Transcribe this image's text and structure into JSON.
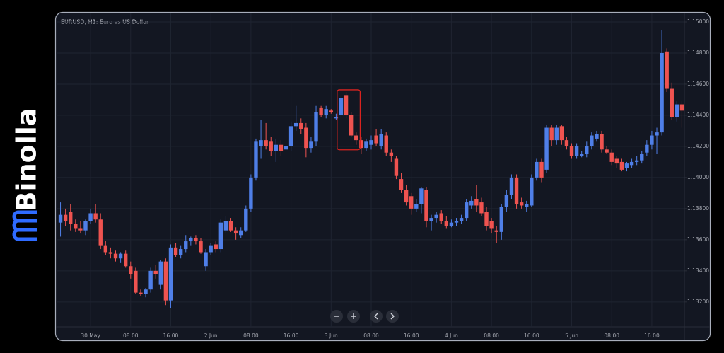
{
  "logo": "Binolla",
  "chart_data": {
    "type": "candlestick",
    "title": "EURUSD, H1: Euro vs US Dollar",
    "up_color": "#4f7fe8",
    "down_color": "#ef5350",
    "categories": [
      null,
      null,
      null,
      null,
      null,
      null,
      "30 May",
      null,
      null,
      null,
      null,
      null,
      null,
      null,
      "08:00",
      null,
      null,
      null,
      null,
      null,
      null,
      null,
      "16:00",
      null,
      null,
      null,
      null,
      null,
      null,
      null,
      "2 Jun",
      null,
      null,
      null,
      null,
      null,
      null,
      null,
      "08:00",
      null,
      null,
      null,
      null,
      null,
      null,
      null,
      "16:00",
      null,
      null,
      null,
      null,
      null,
      null,
      null,
      "3 Jun",
      null,
      null,
      null,
      null,
      null,
      null,
      null,
      "08:00",
      null,
      null,
      null,
      null,
      null,
      null,
      null,
      "16:00",
      null,
      null,
      null,
      null,
      null,
      null,
      null,
      "4 Jun",
      null,
      null,
      null,
      null,
      null,
      null,
      null,
      "08:00",
      null,
      null,
      null,
      null,
      null,
      null,
      null,
      "16:00",
      null,
      null,
      null,
      null,
      null,
      null,
      null,
      "5 Jun",
      null,
      null,
      null,
      null,
      null,
      null,
      null,
      "08:00",
      null,
      null,
      null,
      null,
      null,
      null,
      null,
      "16:00",
      null,
      null,
      null,
      null,
      null,
      null
    ],
    "open": [
      1.1371,
      1.1376,
      1.1378,
      1.137,
      1.1367,
      1.1366,
      1.1372,
      1.1377,
      1.1373,
      1.1356,
      1.1352,
      1.1351,
      1.1348,
      1.1351,
      1.1343,
      1.134,
      1.1326,
      1.1325,
      1.1328,
      1.134,
      1.1331,
      1.1346,
      1.1321,
      1.1355,
      1.135,
      1.1354,
      1.1359,
      1.1361,
      1.1359,
      1.1343,
      1.1352,
      1.1357,
      1.1354,
      1.1366,
      1.1372,
      1.1366,
      1.1363,
      1.1366,
      1.138,
      1.14,
      1.142,
      1.1424,
      1.1423,
      1.1417,
      1.1421,
      1.1418,
      1.142,
      1.1433,
      1.1435,
      1.1432,
      1.1419,
      1.1423,
      1.1445,
      1.144,
      1.1443,
      1.1438,
      1.144,
      1.1453,
      1.144,
      1.1427,
      1.1424,
      1.1419,
      1.1421,
      1.1427,
      1.142,
      1.1427,
      1.1416,
      1.1412,
      1.1399,
      1.1392,
      1.1388,
      1.138,
      1.1383,
      1.1392,
      1.1372,
      1.1374,
      1.1377,
      1.1372,
      1.1369,
      1.1371,
      1.1372,
      1.1374,
      1.1382,
      1.1386,
      1.1384,
      1.1378,
      1.1372,
      1.1366,
      1.1365,
      1.1381,
      1.1389,
      1.14,
      1.1384,
      1.1381,
      1.1382,
      1.14,
      1.141,
      1.1405,
      1.1432,
      1.1424,
      1.1433,
      1.1424,
      1.142,
      1.1414,
      1.1414,
      1.1415,
      1.142,
      1.1425,
      1.1428,
      1.1418,
      1.1416,
      1.1412,
      1.141,
      1.1406,
      1.1408,
      1.141,
      1.1411,
      1.1416,
      1.1421,
      1.1427,
      1.1429,
      1.1481,
      1.1457,
      1.1439,
      1.1447
    ],
    "high": [
      1.1384,
      1.138,
      1.1383,
      1.1373,
      1.1372,
      1.1373,
      1.138,
      1.1383,
      1.1377,
      1.1359,
      1.1355,
      1.1353,
      1.1352,
      1.1353,
      1.1346,
      1.1342,
      1.1328,
      1.1329,
      1.1342,
      1.1344,
      1.1347,
      1.1348,
      1.1357,
      1.1358,
      1.1356,
      1.1363,
      1.1362,
      1.1363,
      1.1361,
      1.1354,
      1.1358,
      1.1359,
      1.1373,
      1.1375,
      1.1374,
      1.1368,
      1.1368,
      1.1382,
      1.1402,
      1.1425,
      1.1437,
      1.1435,
      1.1426,
      1.1425,
      1.1424,
      1.1424,
      1.1436,
      1.1446,
      1.1438,
      1.1435,
      1.1426,
      1.1446,
      1.1446,
      1.1446,
      1.1444,
      1.1441,
      1.1453,
      1.1455,
      1.1442,
      1.1429,
      1.1426,
      1.1425,
      1.1427,
      1.1431,
      1.1431,
      1.1429,
      1.1418,
      1.1414,
      1.1403,
      1.1395,
      1.139,
      1.1386,
      1.1394,
      1.1394,
      1.1376,
      1.1378,
      1.1379,
      1.1375,
      1.1373,
      1.1374,
      1.1376,
      1.1386,
      1.1388,
      1.1395,
      1.1387,
      1.1381,
      1.1374,
      1.1369,
      1.1383,
      1.1392,
      1.1402,
      1.1402,
      1.1387,
      1.1385,
      1.1402,
      1.1412,
      1.1412,
      1.1434,
      1.1434,
      1.1434,
      1.1434,
      1.1426,
      1.1422,
      1.1422,
      1.1417,
      1.1423,
      1.1429,
      1.143,
      1.143,
      1.142,
      1.1418,
      1.1414,
      1.1412,
      1.141,
      1.1412,
      1.1414,
      1.1417,
      1.1424,
      1.143,
      1.1432,
      1.1495,
      1.1483,
      1.1461,
      1.1449,
      1.1449
    ],
    "low": [
      1.1362,
      1.1369,
      1.1366,
      1.1365,
      1.1364,
      1.1363,
      1.137,
      1.1371,
      1.1354,
      1.135,
      1.1348,
      1.1346,
      1.1345,
      1.1342,
      1.1335,
      1.1325,
      1.1324,
      1.1323,
      1.1326,
      1.1335,
      1.1328,
      1.1318,
      1.1316,
      1.1349,
      1.1348,
      1.1352,
      1.1356,
      1.1357,
      1.1351,
      1.134,
      1.135,
      1.1352,
      1.1352,
      1.1364,
      1.1365,
      1.136,
      1.1361,
      1.1365,
      1.1378,
      1.1398,
      1.1412,
      1.1418,
      1.1414,
      1.141,
      1.1414,
      1.1408,
      1.1417,
      1.143,
      1.1428,
      1.1413,
      1.1416,
      1.142,
      1.1439,
      1.1438,
      1.1441,
      1.1437,
      1.1438,
      1.1438,
      1.1426,
      1.1421,
      1.1415,
      1.1417,
      1.1418,
      1.142,
      1.1418,
      1.1414,
      1.141,
      1.1399,
      1.139,
      1.1382,
      1.1376,
      1.1378,
      1.1377,
      1.1368,
      1.1366,
      1.1371,
      1.137,
      1.1367,
      1.1368,
      1.1369,
      1.137,
      1.1372,
      1.138,
      1.1378,
      1.1375,
      1.1366,
      1.1364,
      1.1358,
      1.136,
      1.1378,
      1.1386,
      1.138,
      1.138,
      1.1378,
      1.1381,
      1.1398,
      1.1397,
      1.1403,
      1.142,
      1.1421,
      1.1421,
      1.1418,
      1.1412,
      1.1412,
      1.1413,
      1.1413,
      1.1418,
      1.1423,
      1.1416,
      1.1415,
      1.1408,
      1.1406,
      1.1404,
      1.1404,
      1.1406,
      1.1408,
      1.1409,
      1.1414,
      1.1418,
      1.1415,
      1.1427,
      1.1455,
      1.1437,
      1.1436,
      1.1432
    ],
    "close": [
      1.1376,
      1.1372,
      1.137,
      1.1367,
      1.1366,
      1.1372,
      1.1377,
      1.1373,
      1.1356,
      1.1352,
      1.1351,
      1.1348,
      1.1351,
      1.1343,
      1.1338,
      1.1326,
      1.1325,
      1.1328,
      1.134,
      1.1338,
      1.1346,
      1.1321,
      1.1355,
      1.135,
      1.1354,
      1.1359,
      1.1361,
      1.1359,
      1.1352,
      1.1352,
      1.1356,
      1.1354,
      1.1371,
      1.1372,
      1.1366,
      1.1364,
      1.1366,
      1.138,
      1.14,
      1.1423,
      1.1424,
      1.142,
      1.1417,
      1.1421,
      1.1417,
      1.142,
      1.1433,
      1.1435,
      1.1431,
      1.1419,
      1.1423,
      1.1442,
      1.144,
      1.1444,
      1.1442,
      1.1439,
      1.1451,
      1.144,
      1.1427,
      1.1424,
      1.1419,
      1.1423,
      1.1424,
      1.1422,
      1.1428,
      1.1416,
      1.1414,
      1.1401,
      1.1392,
      1.1384,
      1.138,
      1.1383,
      1.1393,
      1.1372,
      1.1374,
      1.1376,
      1.1372,
      1.1369,
      1.1371,
      1.1372,
      1.1374,
      1.1384,
      1.1385,
      1.1382,
      1.1377,
      1.1369,
      1.1367,
      1.1365,
      1.1381,
      1.1389,
      1.14,
      1.1383,
      1.1382,
      1.1383,
      1.14,
      1.141,
      1.14,
      1.1432,
      1.1424,
      1.1432,
      1.1424,
      1.142,
      1.1414,
      1.142,
      1.1415,
      1.142,
      1.1427,
      1.1428,
      1.1418,
      1.1416,
      1.141,
      1.1409,
      1.1405,
      1.1409,
      1.141,
      1.1411,
      1.1415,
      1.1421,
      1.1427,
      1.1429,
      1.148,
      1.1457,
      1.1439,
      1.1447,
      1.1443
    ],
    "ylim": [
      1.1304,
      1.1505
    ],
    "yticks": [
      {
        "value": 1.132,
        "label": "1.13200"
      },
      {
        "value": 1.134,
        "label": "1.13400"
      },
      {
        "value": 1.136,
        "label": "1.13600"
      },
      {
        "value": 1.138,
        "label": "1.13800"
      },
      {
        "value": 1.14,
        "label": "1.14000"
      },
      {
        "value": 1.142,
        "label": "1.14200"
      },
      {
        "value": 1.144,
        "label": "1.14400"
      },
      {
        "value": 1.146,
        "label": "1.14600"
      },
      {
        "value": 1.148,
        "label": "1.14800"
      },
      {
        "value": 1.15,
        "label": "1.15000"
      }
    ],
    "grid": true
  }
}
